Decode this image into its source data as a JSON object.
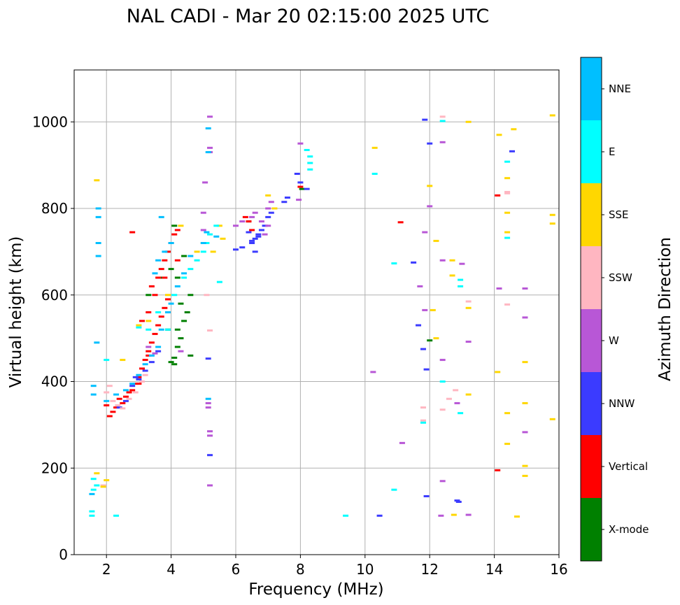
{
  "chart_data": {
    "type": "scatter",
    "title": "NAL CADI - Mar 20 02:15:00 2025 UTC",
    "xlabel": "Frequency (MHz)",
    "ylabel": "Virtual height (km)",
    "xlim": [
      1.0,
      16.0
    ],
    "ylim": [
      0,
      1120
    ],
    "xticks": [
      2,
      4,
      6,
      8,
      10,
      12,
      14,
      16
    ],
    "yticks": [
      0,
      200,
      400,
      600,
      800,
      1000
    ],
    "grid": true,
    "colorbar": {
      "label": "Azimuth Direction",
      "categories": [
        {
          "name": "X-mode",
          "color": "#008000"
        },
        {
          "name": "Vertical",
          "color": "#ff0000"
        },
        {
          "name": "NNW",
          "color": "#3b3bff"
        },
        {
          "name": "W",
          "color": "#b857d6"
        },
        {
          "name": "SSW",
          "color": "#ffb6c1"
        },
        {
          "name": "SSE",
          "color": "#ffd700"
        },
        {
          "name": "E",
          "color": "#00ffff"
        },
        {
          "name": "NNE",
          "color": "#00bfff"
        }
      ]
    },
    "series": [
      {
        "name": "X-mode",
        "points": [
          [
            4.1,
            440
          ],
          [
            4.1,
            455
          ],
          [
            4.2,
            480
          ],
          [
            4.3,
            500
          ],
          [
            4.2,
            520
          ],
          [
            4.4,
            540
          ],
          [
            4.5,
            560
          ],
          [
            4.3,
            580
          ],
          [
            4.6,
            600
          ],
          [
            4.2,
            640
          ],
          [
            4.0,
            660
          ],
          [
            4.4,
            690
          ],
          [
            4.1,
            760
          ],
          [
            3.7,
            640
          ],
          [
            3.9,
            520
          ],
          [
            4.6,
            460
          ],
          [
            4.0,
            445
          ],
          [
            8.05,
            845
          ],
          [
            6.4,
            770
          ],
          [
            12.0,
            495
          ],
          [
            3.3,
            600
          ]
        ]
      },
      {
        "name": "Vertical",
        "points": [
          [
            2.1,
            320
          ],
          [
            2.2,
            330
          ],
          [
            2.3,
            340
          ],
          [
            2.5,
            350
          ],
          [
            2.6,
            365
          ],
          [
            2.8,
            380
          ],
          [
            2.9,
            395
          ],
          [
            3.0,
            410
          ],
          [
            3.1,
            430
          ],
          [
            3.2,
            450
          ],
          [
            3.3,
            470
          ],
          [
            3.4,
            490
          ],
          [
            3.5,
            510
          ],
          [
            3.6,
            530
          ],
          [
            3.7,
            550
          ],
          [
            3.8,
            570
          ],
          [
            3.9,
            590
          ],
          [
            3.5,
            600
          ],
          [
            3.4,
            620
          ],
          [
            3.6,
            640
          ],
          [
            3.7,
            660
          ],
          [
            3.8,
            680
          ],
          [
            3.9,
            700
          ],
          [
            4.0,
            720
          ],
          [
            4.1,
            740
          ],
          [
            4.2,
            750
          ],
          [
            2.0,
            345
          ],
          [
            2.4,
            360
          ],
          [
            2.7,
            375
          ],
          [
            3.0,
            395
          ],
          [
            3.3,
            460
          ],
          [
            4.2,
            680
          ],
          [
            3.3,
            560
          ],
          [
            3.8,
            640
          ],
          [
            6.5,
            750
          ],
          [
            6.4,
            770
          ],
          [
            6.3,
            780
          ],
          [
            14.1,
            830
          ],
          [
            14.1,
            195
          ],
          [
            8.0,
            850
          ],
          [
            11.1,
            768
          ],
          [
            2.8,
            745
          ],
          [
            3.1,
            540
          ]
        ]
      },
      {
        "name": "NNW",
        "points": [
          [
            2.4,
            340
          ],
          [
            2.6,
            355
          ],
          [
            2.8,
            390
          ],
          [
            2.9,
            410
          ],
          [
            3.0,
            405
          ],
          [
            3.2,
            425
          ],
          [
            3.4,
            445
          ],
          [
            3.6,
            470
          ],
          [
            6.0,
            705
          ],
          [
            6.2,
            710
          ],
          [
            6.5,
            720
          ],
          [
            6.6,
            730
          ],
          [
            6.7,
            740
          ],
          [
            6.8,
            750
          ],
          [
            6.9,
            760
          ],
          [
            7.0,
            780
          ],
          [
            7.1,
            790
          ],
          [
            6.6,
            700
          ],
          [
            6.5,
            725
          ],
          [
            6.7,
            735
          ],
          [
            6.4,
            745
          ],
          [
            7.5,
            815
          ],
          [
            7.6,
            825
          ],
          [
            7.9,
            880
          ],
          [
            8.0,
            860
          ],
          [
            8.2,
            845
          ],
          [
            5.2,
            230
          ],
          [
            5.15,
            453
          ],
          [
            11.5,
            675
          ],
          [
            11.85,
            1005
          ],
          [
            12.0,
            950
          ],
          [
            11.9,
            428
          ],
          [
            11.9,
            135
          ],
          [
            12.85,
            125
          ],
          [
            12.9,
            122
          ],
          [
            14.55,
            932
          ],
          [
            10.45,
            90
          ],
          [
            11.65,
            530
          ],
          [
            11.8,
            475
          ]
        ]
      },
      {
        "name": "W",
        "points": [
          [
            5.2,
            1012
          ],
          [
            5.2,
            940
          ],
          [
            5.2,
            930
          ],
          [
            5.15,
            350
          ],
          [
            5.15,
            340
          ],
          [
            5.2,
            285
          ],
          [
            5.2,
            275
          ],
          [
            5.2,
            160
          ],
          [
            5.05,
            860
          ],
          [
            5.0,
            790
          ],
          [
            5.0,
            750
          ],
          [
            6.0,
            760
          ],
          [
            6.2,
            770
          ],
          [
            6.5,
            780
          ],
          [
            6.6,
            790
          ],
          [
            6.8,
            770
          ],
          [
            7.0,
            800
          ],
          [
            7.1,
            815
          ],
          [
            7.0,
            760
          ],
          [
            6.9,
            740
          ],
          [
            8.0,
            950
          ],
          [
            7.95,
            820
          ],
          [
            12.0,
            805
          ],
          [
            11.85,
            745
          ],
          [
            11.85,
            565
          ],
          [
            12.4,
            953
          ],
          [
            12.4,
            450
          ],
          [
            12.4,
            170
          ],
          [
            12.85,
            350
          ],
          [
            13.2,
            492
          ],
          [
            13.2,
            92
          ],
          [
            12.35,
            90
          ],
          [
            13.0,
            672
          ],
          [
            14.15,
            615
          ],
          [
            14.95,
            615
          ],
          [
            14.95,
            548
          ],
          [
            14.95,
            283
          ],
          [
            10.25,
            422
          ],
          [
            11.15,
            258
          ],
          [
            11.7,
            620
          ],
          [
            12.4,
            680
          ],
          [
            3.3,
            480
          ],
          [
            3.5,
            465
          ],
          [
            4.3,
            470
          ]
        ]
      },
      {
        "name": "SSW",
        "points": [
          [
            2.0,
            375
          ],
          [
            2.1,
            390
          ],
          [
            2.2,
            355
          ],
          [
            2.35,
            345
          ],
          [
            2.5,
            338
          ],
          [
            2.7,
            360
          ],
          [
            2.9,
            375
          ],
          [
            3.1,
            400
          ],
          [
            3.2,
            415
          ],
          [
            5.2,
            518
          ],
          [
            5.1,
            600
          ],
          [
            12.4,
            1012
          ],
          [
            12.4,
            335
          ],
          [
            12.8,
            380
          ],
          [
            12.6,
            360
          ],
          [
            14.4,
            838
          ],
          [
            14.4,
            578
          ],
          [
            14.4,
            835
          ],
          [
            11.8,
            310
          ],
          [
            11.8,
            340
          ],
          [
            13.2,
            585
          ],
          [
            1.9,
            160
          ]
        ]
      },
      {
        "name": "SSE",
        "points": [
          [
            1.7,
            188
          ],
          [
            1.9,
            157
          ],
          [
            2.0,
            172
          ],
          [
            2.5,
            450
          ],
          [
            3.0,
            530
          ],
          [
            3.3,
            540
          ],
          [
            3.9,
            600
          ],
          [
            4.3,
            760
          ],
          [
            4.8,
            700
          ],
          [
            5.0,
            720
          ],
          [
            5.3,
            700
          ],
          [
            5.5,
            760
          ],
          [
            5.6,
            730
          ],
          [
            7.0,
            830
          ],
          [
            7.2,
            800
          ],
          [
            10.3,
            940
          ],
          [
            12.0,
            852
          ],
          [
            12.2,
            725
          ],
          [
            12.1,
            565
          ],
          [
            12.2,
            500
          ],
          [
            12.7,
            680
          ],
          [
            12.7,
            645
          ],
          [
            12.75,
            92
          ],
          [
            13.2,
            1000
          ],
          [
            13.2,
            570
          ],
          [
            13.2,
            370
          ],
          [
            14.15,
            970
          ],
          [
            14.4,
            870
          ],
          [
            14.4,
            790
          ],
          [
            14.4,
            745
          ],
          [
            14.6,
            983
          ],
          [
            14.95,
            445
          ],
          [
            14.95,
            350
          ],
          [
            14.95,
            205
          ],
          [
            14.95,
            182
          ],
          [
            14.4,
            327
          ],
          [
            14.4,
            256
          ],
          [
            14.1,
            422
          ],
          [
            14.7,
            88
          ],
          [
            15.8,
            1015
          ],
          [
            15.8,
            785
          ],
          [
            15.8,
            765
          ],
          [
            15.8,
            313
          ],
          [
            1.7,
            865
          ]
        ]
      },
      {
        "name": "E",
        "points": [
          [
            1.6,
            150
          ],
          [
            1.7,
            160
          ],
          [
            1.6,
            175
          ],
          [
            1.55,
            100
          ],
          [
            1.55,
            90
          ],
          [
            2.3,
            90
          ],
          [
            2.0,
            450
          ],
          [
            3.0,
            525
          ],
          [
            3.3,
            520
          ],
          [
            3.6,
            560
          ],
          [
            3.9,
            520
          ],
          [
            4.1,
            600
          ],
          [
            4.4,
            640
          ],
          [
            4.6,
            660
          ],
          [
            4.8,
            680
          ],
          [
            5.0,
            700
          ],
          [
            5.1,
            720
          ],
          [
            5.2,
            740
          ],
          [
            5.4,
            760
          ],
          [
            8.2,
            935
          ],
          [
            8.3,
            920
          ],
          [
            8.3,
            905
          ],
          [
            8.3,
            890
          ],
          [
            10.3,
            880
          ],
          [
            9.4,
            90
          ],
          [
            10.9,
            150
          ],
          [
            10.9,
            673
          ],
          [
            12.4,
            400
          ],
          [
            12.4,
            1002
          ],
          [
            12.95,
            635
          ],
          [
            12.95,
            620
          ],
          [
            12.95,
            327
          ],
          [
            11.8,
            305
          ],
          [
            14.4,
            908
          ],
          [
            14.4,
            732
          ],
          [
            5.5,
            630
          ]
        ]
      },
      {
        "name": "NNE",
        "points": [
          [
            1.75,
            800
          ],
          [
            1.75,
            780
          ],
          [
            1.75,
            720
          ],
          [
            1.75,
            690
          ],
          [
            1.6,
            390
          ],
          [
            1.6,
            370
          ],
          [
            2.0,
            355
          ],
          [
            2.3,
            370
          ],
          [
            2.6,
            380
          ],
          [
            2.8,
            395
          ],
          [
            3.0,
            415
          ],
          [
            3.2,
            440
          ],
          [
            3.4,
            460
          ],
          [
            3.6,
            480
          ],
          [
            3.7,
            520
          ],
          [
            3.9,
            560
          ],
          [
            4.0,
            580
          ],
          [
            4.2,
            620
          ],
          [
            4.4,
            650
          ],
          [
            4.6,
            690
          ],
          [
            5.0,
            720
          ],
          [
            5.1,
            745
          ],
          [
            5.15,
            985
          ],
          [
            5.15,
            930
          ],
          [
            5.15,
            360
          ],
          [
            3.5,
            650
          ],
          [
            3.6,
            680
          ],
          [
            3.8,
            700
          ],
          [
            4.0,
            720
          ],
          [
            3.7,
            780
          ],
          [
            5.4,
            735
          ],
          [
            1.7,
            490
          ],
          [
            1.55,
            140
          ]
        ]
      }
    ]
  }
}
